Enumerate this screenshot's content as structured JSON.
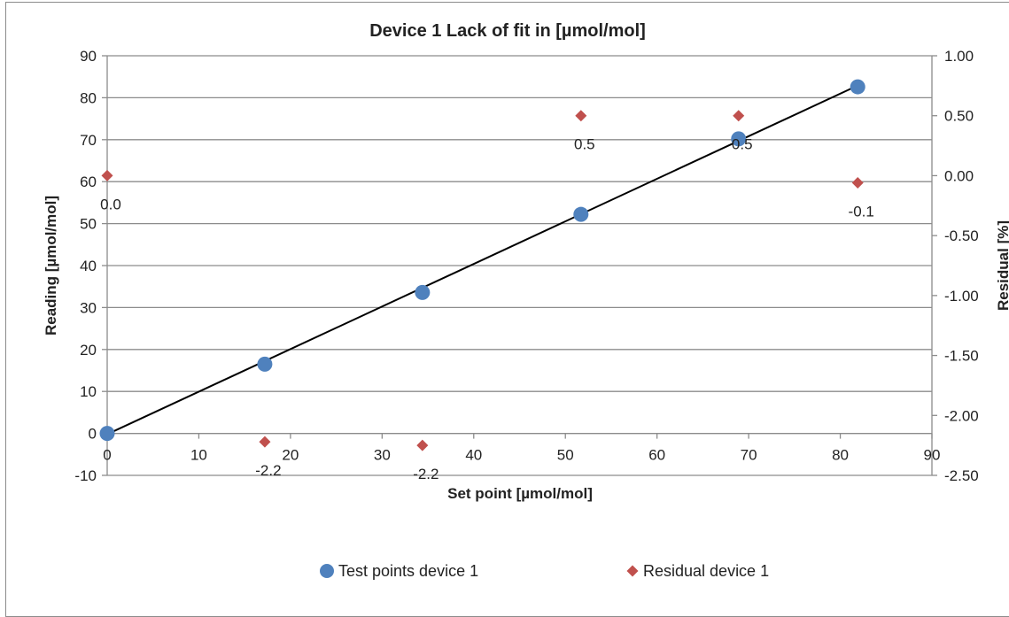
{
  "chart_data": {
    "type": "scatter",
    "title": "Device 1 Lack of fit in [µmol/mol]",
    "xlabel": "Set point [µmol/mol]",
    "ylabel": "Reading [µmol/mol]",
    "y2label": "Residual [%]",
    "xlim": [
      0,
      90
    ],
    "ylim": [
      -10,
      90
    ],
    "y2lim": [
      -2.5,
      1.0
    ],
    "x_ticks": [
      "0",
      "10",
      "20",
      "30",
      "40",
      "50",
      "60",
      "70",
      "80",
      "90"
    ],
    "y_ticks": [
      "-10",
      "0",
      "10",
      "20",
      "30",
      "40",
      "50",
      "60",
      "70",
      "80",
      "90"
    ],
    "y2_ticks": [
      "-2.50",
      "-2.00",
      "-1.50",
      "-1.00",
      "-0.50",
      "0.00",
      "0.50",
      "1.00"
    ],
    "grid": true,
    "legend_position": "bottom",
    "colors": {
      "test_points": "#4f81bd",
      "residual": "#c0504d",
      "fit_line": "#000000"
    },
    "series": [
      {
        "name": "Test points device 1",
        "axis": "primary",
        "marker": "circle",
        "x": [
          0,
          17.2,
          34.4,
          51.7,
          68.9,
          81.9
        ],
        "y": [
          0,
          16.5,
          33.6,
          52.2,
          70.2,
          82.6
        ]
      },
      {
        "name": "Residual device 1",
        "axis": "secondary",
        "marker": "diamond",
        "x": [
          0,
          17.2,
          34.4,
          51.7,
          68.9,
          81.9
        ],
        "y": [
          0.0,
          -2.22,
          -2.25,
          0.5,
          0.5,
          -0.06
        ],
        "labels": [
          "0.0",
          "-2.2",
          "-2.2",
          "0.5",
          "0.5",
          "-0.1"
        ]
      }
    ],
    "fit_line": {
      "x": [
        0,
        81.9
      ],
      "y": [
        -0.2,
        82.9
      ]
    }
  }
}
